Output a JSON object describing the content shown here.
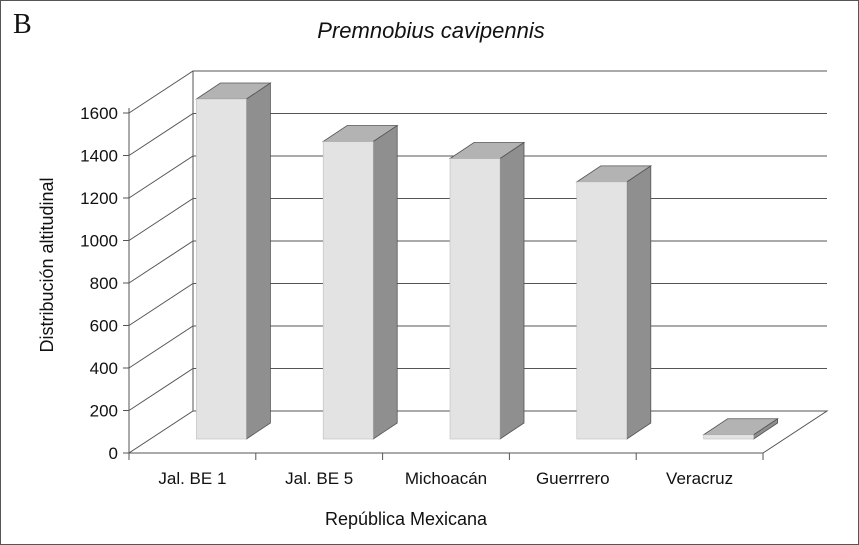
{
  "panel_label": "B",
  "chart_data": {
    "type": "bar",
    "style": "3d-column",
    "title": "Premnobius cavipennis",
    "xlabel": "República Mexicana",
    "ylabel": "Distribución altitudinal",
    "categories": [
      "Jal. BE 1",
      "Jal. BE 5",
      "Michoacán",
      "Guerrrero",
      "Veracruz"
    ],
    "values": [
      1600,
      1400,
      1320,
      1210,
      20
    ],
    "ylim": [
      0,
      1600
    ],
    "yticks": [
      0,
      200,
      400,
      600,
      800,
      1000,
      1200,
      1400,
      1600
    ],
    "grid": true,
    "legend": "none",
    "colors": {
      "bar_front": "#e3e3e3",
      "bar_side": "#8f8f8f",
      "bar_top": "#b3b3b3",
      "grid": "#555555"
    }
  }
}
